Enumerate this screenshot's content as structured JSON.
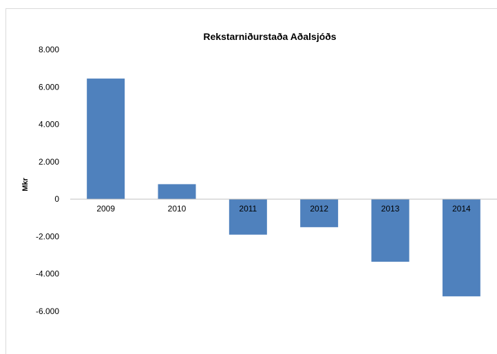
{
  "chart_data": {
    "type": "bar",
    "title": "Rekstarniðurstaða Aðalsjóðs",
    "xlabel": "",
    "ylabel": "Mkr",
    "categories": [
      "2009",
      "2010",
      "2011",
      "2012",
      "2013",
      "2014"
    ],
    "values": [
      6450,
      800,
      -1900,
      -1500,
      -3350,
      -5200
    ],
    "ylim": [
      -6000,
      8000
    ],
    "yticks": [
      8000,
      6000,
      4000,
      2000,
      0,
      -2000,
      -4000,
      -6000
    ],
    "ytick_labels": [
      "8.000",
      "6.000",
      "4.000",
      "2.000",
      "0",
      "-2.000",
      "-4.000",
      "-6.000"
    ],
    "grid": false,
    "legend": "none",
    "bar_color": "#4f81bd"
  }
}
